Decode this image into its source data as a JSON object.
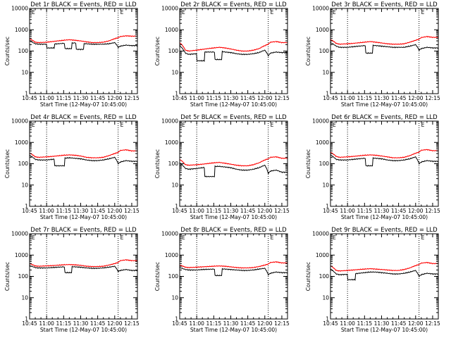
{
  "panel_titles": [
    "Det 1r BLACK = Events, RED = LLD",
    "Det 2r BLACK = Events, RED = LLD",
    "Det 3r BLACK = Events, RED = LLD",
    "Det 4r BLACK = Events, RED = LLD",
    "Det 5r BLACK = Events, RED = LLD",
    "Det 6r BLACK = Events, RED = LLD",
    "Det 7r BLACK = Events, RED = LLD",
    "Det 8r BLACK = Events, RED = LLD",
    "Det 9r BLACK = Events, RED = LLD"
  ],
  "xlabel": "Start Time (12-May-07 10:45:00)",
  "ylabel": "Counts/sec",
  "x_tick_labels": [
    "10:45",
    "11:00",
    "11:15",
    "11:30",
    "11:45",
    "12:00",
    "12:15"
  ],
  "y_tick_labels": [
    "1",
    "10",
    "100",
    "1000",
    "10000"
  ],
  "corner_mark": "E",
  "colors": {
    "events": "#000000",
    "lld": "#ff0000",
    "vlines": "#000000"
  },
  "chart_data": [
    {
      "type": "line",
      "title": "Det 1r BLACK = Events, RED = LLD",
      "xlabel": "Start Time (12-May-07 10:45:00)",
      "ylabel": "Counts/sec",
      "x": [
        0,
        5,
        8,
        15,
        20,
        30,
        35,
        40,
        45,
        50,
        55,
        60,
        65,
        70,
        75,
        78,
        80,
        85,
        90
      ],
      "series": [
        {
          "name": "Events",
          "values": [
            300,
            220,
            210,
            210,
            210,
            230,
            240,
            240,
            230,
            220,
            210,
            210,
            210,
            220,
            250,
            150,
            170,
            190,
            180
          ]
        },
        {
          "name": "LLD",
          "values": [
            380,
            260,
            250,
            260,
            280,
            320,
            340,
            320,
            300,
            270,
            250,
            250,
            260,
            300,
            380,
            420,
            480,
            520,
            500
          ]
        }
      ],
      "dips": [
        [
          15,
          22,
          140
        ],
        [
          31,
          37,
          130
        ],
        [
          41,
          48,
          120
        ]
      ],
      "vlines_min": [
        15,
        78
      ],
      "xlim": [
        0,
        95
      ],
      "ylim": [
        1,
        10000
      ],
      "yscale": "log"
    },
    {
      "type": "line",
      "title": "Det 2r BLACK = Events, RED = LLD",
      "xlabel": "Start Time (12-May-07 10:45:00)",
      "ylabel": "Counts/sec",
      "x": [
        0,
        5,
        8,
        15,
        20,
        30,
        35,
        40,
        45,
        50,
        55,
        60,
        65,
        70,
        75,
        78,
        80,
        85,
        90
      ],
      "series": [
        {
          "name": "Events",
          "values": [
            180,
            80,
            70,
            75,
            80,
            95,
            100,
            90,
            85,
            75,
            70,
            70,
            75,
            85,
            110,
            60,
            80,
            90,
            85
          ]
        },
        {
          "name": "LLD",
          "values": [
            250,
            110,
            100,
            110,
            120,
            140,
            150,
            140,
            125,
            110,
            100,
            100,
            110,
            130,
            180,
            210,
            260,
            280,
            250
          ]
        }
      ],
      "dips": [
        [
          15,
          22,
          35
        ],
        [
          22,
          31,
          90
        ],
        [
          31,
          37,
          40
        ]
      ],
      "vlines_min": [
        15,
        78
      ],
      "xlim": [
        0,
        95
      ],
      "ylim": [
        1,
        10000
      ],
      "yscale": "log"
    },
    {
      "type": "line",
      "title": "Det 3r BLACK = Events, RED = LLD",
      "xlabel": "Start Time (12-May-07 10:45:00)",
      "ylabel": "Counts/sec",
      "x": [
        0,
        5,
        8,
        15,
        20,
        30,
        35,
        40,
        45,
        50,
        55,
        60,
        65,
        70,
        75,
        78,
        80,
        85,
        90
      ],
      "series": [
        {
          "name": "Events",
          "values": [
            250,
            170,
            150,
            150,
            160,
            180,
            190,
            180,
            170,
            160,
            150,
            150,
            150,
            170,
            200,
            110,
            130,
            150,
            140
          ]
        },
        {
          "name": "LLD",
          "values": [
            350,
            230,
            210,
            220,
            230,
            260,
            280,
            260,
            240,
            220,
            210,
            210,
            220,
            260,
            320,
            360,
            430,
            480,
            440
          ]
        }
      ],
      "dips": [
        [
          31,
          37,
          80
        ]
      ],
      "vlines_min": [
        15,
        78
      ],
      "xlim": [
        0,
        95
      ],
      "ylim": [
        1,
        10000
      ],
      "yscale": "log"
    },
    {
      "type": "line",
      "title": "Det 4r BLACK = Events, RED = LLD",
      "xlabel": "Start Time (12-May-07 10:45:00)",
      "ylabel": "Counts/sec",
      "x": [
        0,
        5,
        8,
        15,
        20,
        30,
        35,
        40,
        45,
        50,
        55,
        60,
        65,
        70,
        75,
        78,
        80,
        85,
        90
      ],
      "series": [
        {
          "name": "Events",
          "values": [
            250,
            160,
            150,
            150,
            160,
            180,
            190,
            180,
            170,
            150,
            140,
            140,
            150,
            170,
            200,
            100,
            120,
            140,
            130
          ]
        },
        {
          "name": "LLD",
          "values": [
            320,
            210,
            200,
            210,
            220,
            250,
            260,
            250,
            230,
            200,
            190,
            190,
            200,
            240,
            300,
            340,
            420,
            450,
            400
          ]
        }
      ],
      "dips": [
        [
          22,
          31,
          80
        ]
      ],
      "vlines_min": [
        15,
        78
      ],
      "xlim": [
        0,
        95
      ],
      "ylim": [
        1,
        10000
      ],
      "yscale": "log"
    },
    {
      "type": "line",
      "title": "Det 5r BLACK = Events, RED = LLD",
      "xlabel": "Start Time (12-May-07 10:45:00)",
      "ylabel": "Counts/sec",
      "x": [
        0,
        5,
        8,
        15,
        20,
        30,
        35,
        40,
        45,
        50,
        55,
        60,
        65,
        70,
        75,
        78,
        80,
        85,
        90
      ],
      "series": [
        {
          "name": "Events",
          "values": [
            110,
            60,
            55,
            60,
            65,
            75,
            75,
            70,
            65,
            55,
            50,
            50,
            55,
            65,
            85,
            35,
            45,
            50,
            40
          ]
        },
        {
          "name": "LLD",
          "values": [
            160,
            90,
            85,
            90,
            95,
            110,
            115,
            105,
            95,
            85,
            80,
            80,
            90,
            110,
            150,
            170,
            200,
            210,
            180
          ]
        }
      ],
      "dips": [
        [
          22,
          31,
          25
        ]
      ],
      "vlines_min": [
        15,
        78
      ],
      "xlim": [
        0,
        95
      ],
      "ylim": [
        1,
        10000
      ],
      "yscale": "log"
    },
    {
      "type": "line",
      "title": "Det 6r BLACK = Events, RED = LLD",
      "xlabel": "Start Time (12-May-07 10:45:00)",
      "ylabel": "Counts/sec",
      "x": [
        0,
        5,
        8,
        15,
        20,
        30,
        35,
        40,
        45,
        50,
        55,
        60,
        65,
        70,
        75,
        78,
        80,
        85,
        90
      ],
      "series": [
        {
          "name": "Events",
          "values": [
            260,
            160,
            150,
            150,
            160,
            180,
            190,
            180,
            170,
            150,
            140,
            140,
            150,
            170,
            210,
            100,
            120,
            140,
            130
          ]
        },
        {
          "name": "LLD",
          "values": [
            350,
            220,
            200,
            210,
            220,
            250,
            260,
            250,
            230,
            210,
            190,
            190,
            200,
            240,
            310,
            350,
            430,
            460,
            410
          ]
        }
      ],
      "dips": [
        [
          31,
          37,
          80
        ]
      ],
      "vlines_min": [
        15,
        78
      ],
      "xlim": [
        0,
        95
      ],
      "ylim": [
        1,
        10000
      ],
      "yscale": "log"
    },
    {
      "type": "line",
      "title": "Det 7r BLACK = Events, RED = LLD",
      "xlabel": "Start Time (12-May-07 10:45:00)",
      "ylabel": "Counts/sec",
      "x": [
        0,
        5,
        8,
        15,
        20,
        30,
        35,
        40,
        45,
        50,
        55,
        60,
        65,
        70,
        75,
        78,
        80,
        85,
        90
      ],
      "series": [
        {
          "name": "Events",
          "values": [
            320,
            260,
            250,
            250,
            260,
            280,
            290,
            280,
            270,
            250,
            240,
            240,
            250,
            270,
            300,
            170,
            190,
            210,
            190
          ]
        },
        {
          "name": "LLD",
          "values": [
            400,
            310,
            300,
            310,
            320,
            350,
            360,
            350,
            330,
            300,
            290,
            290,
            300,
            340,
            400,
            450,
            550,
            600,
            550
          ]
        }
      ],
      "dips": [
        [
          31,
          37,
          150
        ]
      ],
      "vlines_min": [
        15,
        78
      ],
      "xlim": [
        0,
        95
      ],
      "ylim": [
        1,
        10000
      ],
      "yscale": "log"
    },
    {
      "type": "line",
      "title": "Det 8r BLACK = Events, RED = LLD",
      "xlabel": "Start Time (12-May-07 10:45:00)",
      "ylabel": "Counts/sec",
      "x": [
        0,
        5,
        8,
        15,
        20,
        30,
        35,
        40,
        45,
        50,
        55,
        60,
        65,
        70,
        75,
        78,
        80,
        85,
        90
      ],
      "series": [
        {
          "name": "Events",
          "values": [
            260,
            210,
            200,
            200,
            210,
            220,
            230,
            220,
            210,
            200,
            190,
            190,
            200,
            220,
            240,
            120,
            140,
            160,
            150
          ]
        },
        {
          "name": "LLD",
          "values": [
            340,
            270,
            260,
            270,
            280,
            300,
            310,
            300,
            280,
            260,
            250,
            250,
            260,
            290,
            340,
            380,
            450,
            480,
            430
          ]
        }
      ],
      "dips": [
        [
          31,
          37,
          110
        ]
      ],
      "vlines_min": [
        15,
        78
      ],
      "xlim": [
        0,
        95
      ],
      "ylim": [
        1,
        10000
      ],
      "yscale": "log"
    },
    {
      "type": "line",
      "title": "Det 9r BLACK = Events, RED = LLD",
      "xlabel": "Start Time (12-May-07 10:45:00)",
      "ylabel": "Counts/sec",
      "x": [
        0,
        5,
        8,
        15,
        20,
        30,
        35,
        40,
        45,
        50,
        55,
        60,
        65,
        70,
        75,
        78,
        80,
        85,
        90
      ],
      "series": [
        {
          "name": "Events",
          "values": [
            220,
            130,
            120,
            125,
            130,
            150,
            160,
            160,
            150,
            140,
            130,
            130,
            140,
            160,
            190,
            100,
            120,
            140,
            130
          ]
        },
        {
          "name": "LLD",
          "values": [
            320,
            190,
            180,
            190,
            200,
            220,
            230,
            220,
            210,
            200,
            190,
            190,
            210,
            250,
            320,
            360,
            420,
            450,
            400
          ]
        }
      ],
      "dips": [
        [
          15,
          22,
          70
        ]
      ],
      "vlines_min": [
        15,
        78
      ],
      "xlim": [
        0,
        95
      ],
      "ylim": [
        1,
        10000
      ],
      "yscale": "log"
    }
  ]
}
